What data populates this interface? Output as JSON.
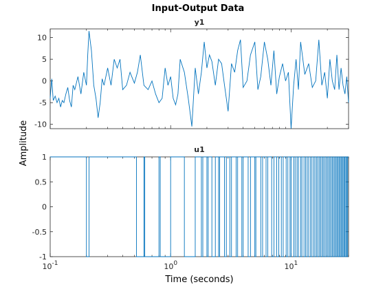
{
  "figure": {
    "title": "Input-Output Data",
    "xlabel": "Time (seconds)",
    "ylabel": "Amplitude",
    "line_color": "#0072bd",
    "background": "#ffffff"
  },
  "chart_data": [
    {
      "type": "line",
      "subtitle": "y1",
      "xscale": "log",
      "xlim": [
        0.1,
        30
      ],
      "ylim": [
        -11,
        12
      ],
      "yticks": [
        -10,
        -5,
        0,
        5,
        10
      ],
      "ytick_labels": [
        "-10",
        "-5",
        "0",
        "5",
        "10"
      ],
      "series": [
        {
          "x": [
            0.1,
            0.103,
            0.106,
            0.11,
            0.114,
            0.118,
            0.122,
            0.126,
            0.13,
            0.135,
            0.14,
            0.145,
            0.15,
            0.155,
            0.16,
            0.17,
            0.18,
            0.19,
            0.2,
            0.205,
            0.21,
            0.22,
            0.23,
            0.24,
            0.25,
            0.26,
            0.27,
            0.28,
            0.3,
            0.32,
            0.34,
            0.36,
            0.38,
            0.4,
            0.43,
            0.46,
            0.5,
            0.53,
            0.56,
            0.6,
            0.65,
            0.7,
            0.75,
            0.8,
            0.85,
            0.9,
            0.95,
            1.0,
            1.05,
            1.1,
            1.15,
            1.2,
            1.3,
            1.4,
            1.5,
            1.6,
            1.7,
            1.8,
            1.9,
            2.0,
            2.1,
            2.2,
            2.35,
            2.5,
            2.65,
            2.8,
            3.0,
            3.2,
            3.4,
            3.6,
            3.8,
            4.0,
            4.3,
            4.6,
            5.0,
            5.3,
            5.6,
            6.0,
            6.4,
            6.8,
            7.2,
            7.6,
            8.0,
            8.5,
            9.0,
            9.5,
            10.0,
            10.5,
            11.0,
            11.5,
            12.0,
            13.0,
            14.0,
            15.0,
            16.0,
            17.0,
            18.0,
            19.0,
            20.0,
            21.0,
            22.0,
            23.0,
            24.0,
            25.0,
            26.0,
            27.0,
            28.0,
            29.0,
            30.0
          ],
          "y": [
            -4,
            0.5,
            -4.5,
            -3.5,
            -5,
            -4,
            -6,
            -4.5,
            -5,
            -3,
            -1.5,
            -4.5,
            -6,
            -1,
            -2,
            1,
            -3,
            2,
            -1,
            6,
            11.5,
            7,
            -1,
            -4,
            -8.5,
            -5,
            0.5,
            -1,
            3,
            -1,
            5,
            3,
            5,
            -2,
            -1,
            2,
            -0.5,
            2,
            6,
            -1,
            -2,
            0,
            -3,
            -5,
            -4,
            3,
            -1,
            1,
            -4,
            -5.5,
            -3,
            5,
            2,
            -4,
            -10.5,
            3,
            -3,
            2,
            9,
            3,
            6,
            4.5,
            -1,
            5,
            4,
            -1,
            -7,
            4,
            2,
            7,
            9.5,
            -1.5,
            0,
            6,
            9,
            -2,
            1,
            9,
            5,
            -1,
            7,
            -3,
            1,
            4,
            0,
            2,
            -11,
            -1,
            5,
            -2,
            9,
            1.5,
            4,
            -1.5,
            0,
            9.5,
            -1,
            2,
            -4,
            5,
            0,
            -2,
            6,
            -2,
            3,
            -1,
            -3,
            1,
            -5
          ]
        }
      ]
    },
    {
      "type": "line",
      "subtitle": "u1",
      "xscale": "log",
      "xlim": [
        0.1,
        30
      ],
      "ylim": [
        -1,
        1
      ],
      "yticks": [
        -1,
        -0.5,
        0,
        0.5,
        1
      ],
      "ytick_labels": [
        "-1",
        "-0.5",
        "0",
        "0.5",
        "1"
      ],
      "xticks": [
        0.1,
        1,
        10
      ],
      "xtick_labels": [
        {
          "base": "10",
          "exp": "-1"
        },
        {
          "base": "10",
          "exp": "0"
        },
        {
          "base": "10",
          "exp": "1"
        }
      ],
      "series": [
        {
          "signal": "binary",
          "levels": [
            -1,
            1
          ],
          "initial_level": 1,
          "switch_times": [
            0.2,
            0.21,
            0.52,
            0.6,
            0.61,
            0.8,
            0.82,
            1.0,
            1.3,
            1.6,
            1.8,
            1.85,
            2.0,
            2.05,
            2.2,
            2.35,
            2.5,
            2.55,
            2.8,
            2.9,
            3.1,
            3.2,
            3.5,
            3.6,
            3.9,
            4.0,
            4.4,
            4.6,
            5.0,
            5.1,
            5.6,
            5.8,
            6.2,
            6.4,
            6.9,
            7.2,
            7.6,
            7.9,
            8.3,
            8.6,
            9.1,
            9.4,
            9.8,
            10.0,
            10.5,
            10.8,
            11.2,
            11.5,
            12.0,
            12.3,
            12.8,
            13.2,
            13.6,
            14.0,
            14.5,
            14.9,
            15.4,
            15.8,
            16.3,
            16.7,
            17.2,
            17.6,
            18.1,
            18.5,
            19.0,
            19.5,
            20.0,
            20.5,
            21.0,
            21.5,
            22.0,
            22.5,
            23.0,
            23.5,
            24.0,
            24.5,
            25.0,
            25.5,
            26.0,
            26.5,
            27.0,
            27.5,
            28.0,
            28.5,
            29.0,
            29.5
          ]
        }
      ]
    }
  ]
}
